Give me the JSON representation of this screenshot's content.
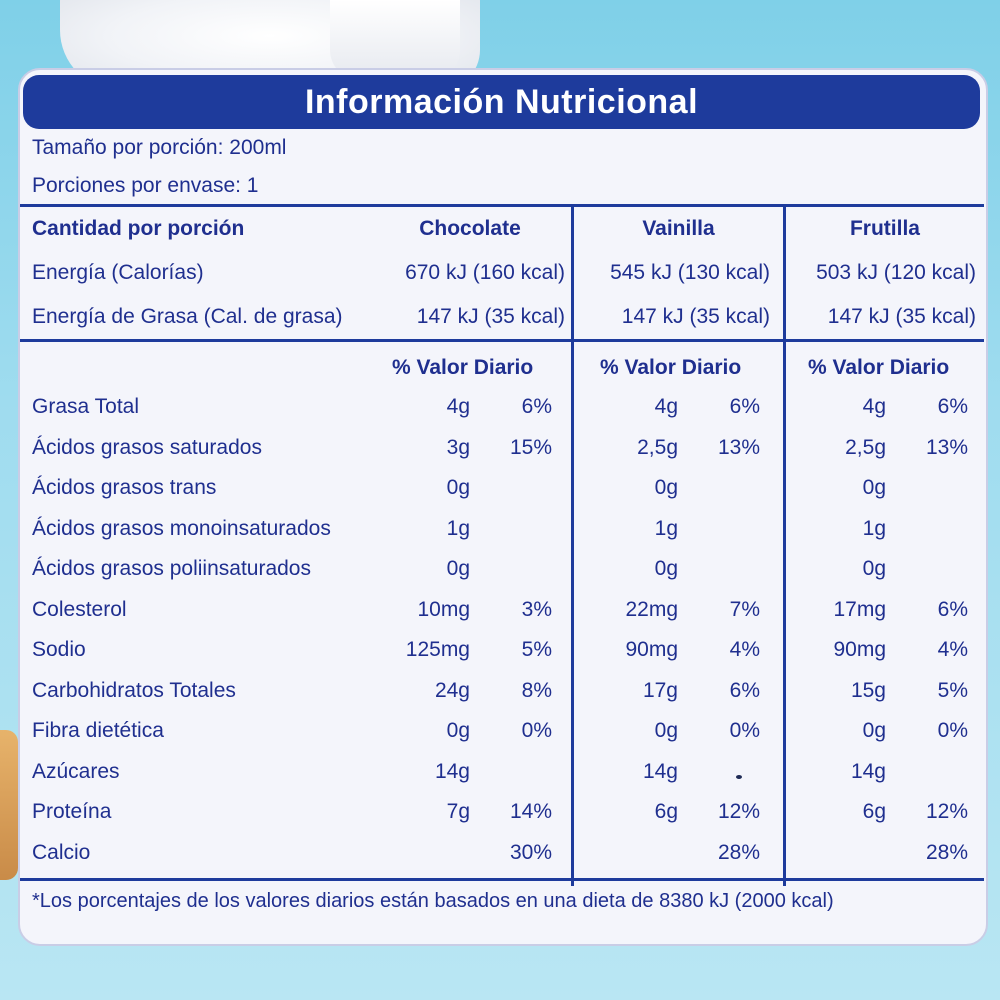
{
  "title": "Información Nutricional",
  "serving_size": "Tamaño por porción: 200ml",
  "servings_per_container": "Porciones por envase: 1",
  "header_left": "Cantidad por porción",
  "flavors": [
    "Chocolate",
    "Vainilla",
    "Frutilla"
  ],
  "energy": {
    "label": "Energía (Calorías)",
    "values": [
      "670 kJ (160 kcal)",
      "545 kJ (130 kcal)",
      "503 kJ (120 kcal)"
    ]
  },
  "fat_energy": {
    "label": "Energía de Grasa (Cal. de grasa)",
    "values": [
      "147 kJ (35 kcal)",
      "147 kJ (35 kcal)",
      "147 kJ (35 kcal)"
    ]
  },
  "dv_header": "% Valor Diario",
  "nutrients": [
    {
      "label": "Grasa Total",
      "cols": [
        [
          "4g",
          "6%"
        ],
        [
          "4g",
          "6%"
        ],
        [
          "4g",
          "6%"
        ]
      ]
    },
    {
      "label": "Ácidos grasos saturados",
      "cols": [
        [
          "3g",
          "15%"
        ],
        [
          "2,5g",
          "13%"
        ],
        [
          "2,5g",
          "13%"
        ]
      ]
    },
    {
      "label": "Ácidos grasos trans",
      "cols": [
        [
          "0g",
          ""
        ],
        [
          "0g",
          ""
        ],
        [
          "0g",
          ""
        ]
      ]
    },
    {
      "label": "Ácidos grasos monoinsaturados",
      "cols": [
        [
          "1g",
          ""
        ],
        [
          "1g",
          ""
        ],
        [
          "1g",
          ""
        ]
      ]
    },
    {
      "label": "Ácidos grasos poliinsaturados",
      "cols": [
        [
          "0g",
          ""
        ],
        [
          "0g",
          ""
        ],
        [
          "0g",
          ""
        ]
      ]
    },
    {
      "label": "Colesterol",
      "cols": [
        [
          "10mg",
          "3%"
        ],
        [
          "22mg",
          "7%"
        ],
        [
          "17mg",
          "6%"
        ]
      ]
    },
    {
      "label": "Sodio",
      "cols": [
        [
          "125mg",
          "5%"
        ],
        [
          "90mg",
          "4%"
        ],
        [
          "90mg",
          "4%"
        ]
      ]
    },
    {
      "label": "Carbohidratos Totales",
      "cols": [
        [
          "24g",
          "8%"
        ],
        [
          "17g",
          "6%"
        ],
        [
          "15g",
          "5%"
        ]
      ]
    },
    {
      "label": "Fibra dietética",
      "cols": [
        [
          "0g",
          "0%"
        ],
        [
          "0g",
          "0%"
        ],
        [
          "0g",
          "0%"
        ]
      ]
    },
    {
      "label": "Azúcares",
      "cols": [
        [
          "14g",
          ""
        ],
        [
          "14g",
          ""
        ],
        [
          "14g",
          ""
        ]
      ]
    },
    {
      "label": "Proteína",
      "cols": [
        [
          "7g",
          "14%"
        ],
        [
          "6g",
          "12%"
        ],
        [
          "6g",
          "12%"
        ]
      ]
    },
    {
      "label": "Calcio",
      "cols": [
        [
          "",
          "30%"
        ],
        [
          "",
          "28%"
        ],
        [
          "",
          "28%"
        ]
      ]
    }
  ],
  "footnote": "*Los porcentajes de los valores diarios están basados en una dieta de 8380 kJ (2000 kcal)",
  "colors": {
    "brand_blue": "#1e3b9c",
    "text_blue": "#1f2f8f",
    "panel_bg": "#f4f5fb"
  }
}
